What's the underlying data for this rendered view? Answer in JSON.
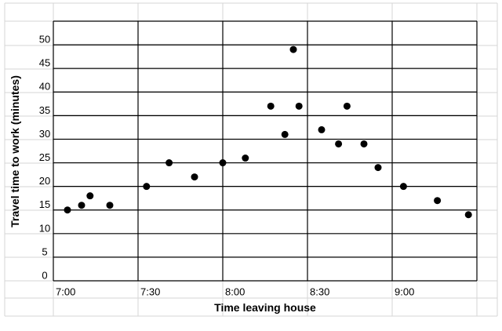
{
  "chart_data": {
    "type": "scatter",
    "xlabel": "Time leaving house",
    "ylabel": "Travel time to work (minutes)",
    "x_unit": "time of day",
    "xlim": [
      "7:00",
      "9:30"
    ],
    "ylim": [
      0,
      50
    ],
    "x_ticks": [
      "7:00",
      "7:30",
      "8:00",
      "8:30",
      "9:00"
    ],
    "y_ticks": [
      0,
      5,
      10,
      15,
      20,
      25,
      30,
      35,
      40,
      45,
      50
    ],
    "grid": true,
    "legend": "none",
    "marker_color": "#000000",
    "points": [
      {
        "x": "7:05",
        "y": 15
      },
      {
        "x": "7:10",
        "y": 16
      },
      {
        "x": "7:13",
        "y": 18
      },
      {
        "x": "7:20",
        "y": 16
      },
      {
        "x": "7:33",
        "y": 20
      },
      {
        "x": "7:41",
        "y": 25
      },
      {
        "x": "7:50",
        "y": 22
      },
      {
        "x": "8:00",
        "y": 25
      },
      {
        "x": "8:08",
        "y": 26
      },
      {
        "x": "8:17",
        "y": 37
      },
      {
        "x": "8:22",
        "y": 31
      },
      {
        "x": "8:25",
        "y": 49
      },
      {
        "x": "8:27",
        "y": 37
      },
      {
        "x": "8:35",
        "y": 32
      },
      {
        "x": "8:41",
        "y": 29
      },
      {
        "x": "8:44",
        "y": 37
      },
      {
        "x": "8:50",
        "y": 29
      },
      {
        "x": "8:55",
        "y": 24
      },
      {
        "x": "9:04",
        "y": 20
      },
      {
        "x": "9:16",
        "y": 17
      },
      {
        "x": "9:27",
        "y": 14
      }
    ]
  }
}
